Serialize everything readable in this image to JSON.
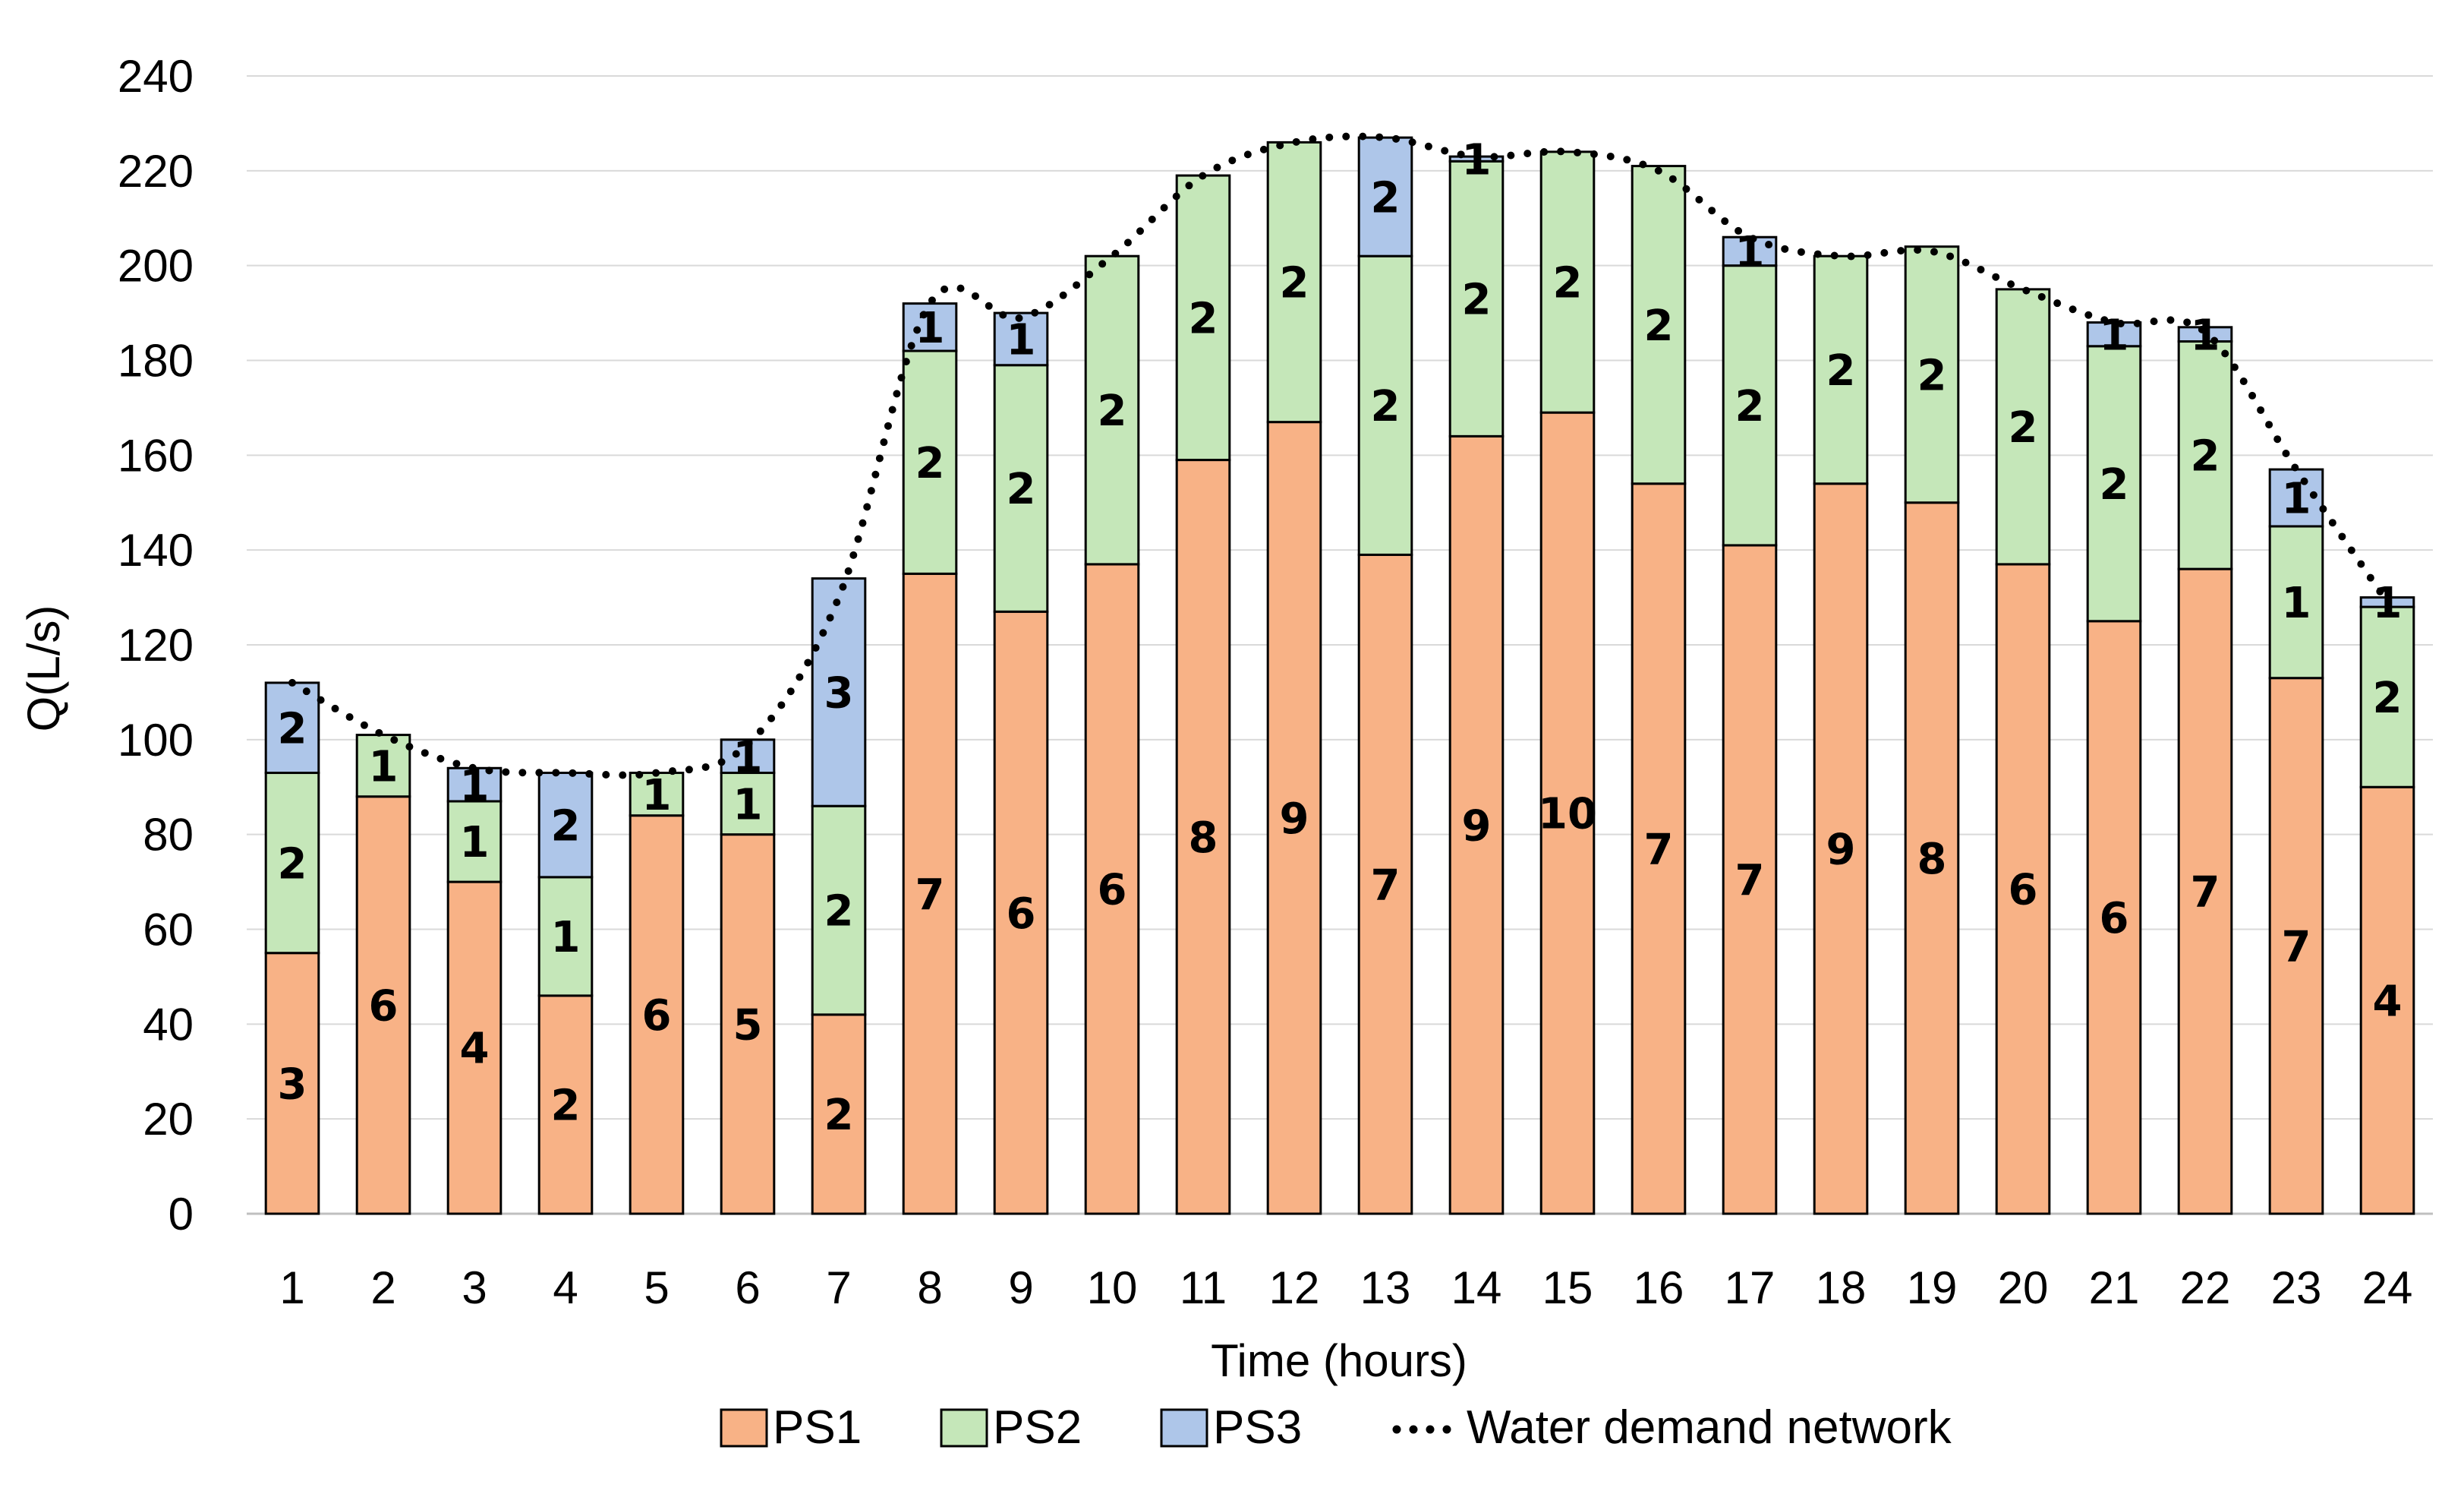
{
  "chart_data": {
    "type": "bar",
    "stacked": true,
    "title": "",
    "xlabel": "Time (hours)",
    "ylabel": "Q(L/s)",
    "ylim": [
      0,
      240
    ],
    "yticks": [
      0,
      20,
      40,
      60,
      80,
      100,
      120,
      140,
      160,
      180,
      200,
      220,
      240
    ],
    "grid": true,
    "legend_position": "bottom",
    "categories": [
      "1",
      "2",
      "3",
      "4",
      "5",
      "6",
      "7",
      "8",
      "9",
      "10",
      "11",
      "12",
      "13",
      "14",
      "15",
      "16",
      "17",
      "18",
      "19",
      "20",
      "21",
      "22",
      "23",
      "24"
    ],
    "series": [
      {
        "name": "PS1",
        "color": "#F8B286",
        "values": [
          55,
          88,
          70,
          46,
          84,
          80,
          42,
          135,
          127,
          137,
          159,
          167,
          139,
          164,
          169,
          154,
          141,
          154,
          150,
          137,
          125,
          136,
          113,
          90
        ],
        "labels": [
          "3",
          "6",
          "4",
          "2",
          "6",
          "5",
          "2",
          "7",
          "6",
          "6",
          "8",
          "9",
          "7",
          "9",
          "10",
          "7",
          "7",
          "9",
          "8",
          "6",
          "6",
          "7",
          "7",
          "4"
        ]
      },
      {
        "name": "PS2",
        "color": "#C5E7B9",
        "values": [
          38,
          13,
          17,
          25,
          9,
          13,
          44,
          47,
          52,
          65,
          60,
          59,
          63,
          58,
          55,
          67,
          59,
          48,
          54,
          58,
          58,
          48,
          32,
          38
        ],
        "labels": [
          "2",
          "1",
          "1",
          "1",
          "1",
          "1",
          "2",
          "2",
          "2",
          "2",
          "2",
          "2",
          "2",
          "2",
          "2",
          "2",
          "2",
          "2",
          "2",
          "2",
          "2",
          "2",
          "1",
          "2"
        ]
      },
      {
        "name": "PS3",
        "color": "#AEC6E9",
        "values": [
          19,
          0,
          7,
          22,
          0,
          7,
          48,
          10,
          11,
          0,
          0,
          0,
          25,
          1,
          0,
          0,
          6,
          0,
          0,
          0,
          5,
          3,
          12,
          2
        ],
        "labels": [
          "2",
          "",
          "1",
          "2",
          "",
          "1",
          "3",
          "1",
          "1",
          "",
          "",
          "",
          "2",
          "1",
          "",
          "",
          "1",
          "",
          "",
          "",
          "1",
          "1",
          "1",
          "1"
        ]
      }
    ],
    "line_series": {
      "name": "Water demand network",
      "style": "dotted",
      "color": "#000000",
      "values": [
        112,
        101,
        94,
        93,
        93,
        99,
        130,
        192,
        189,
        202,
        219,
        226,
        227,
        223,
        224,
        220,
        206,
        202,
        203,
        195,
        188,
        186,
        157,
        129
      ]
    }
  }
}
